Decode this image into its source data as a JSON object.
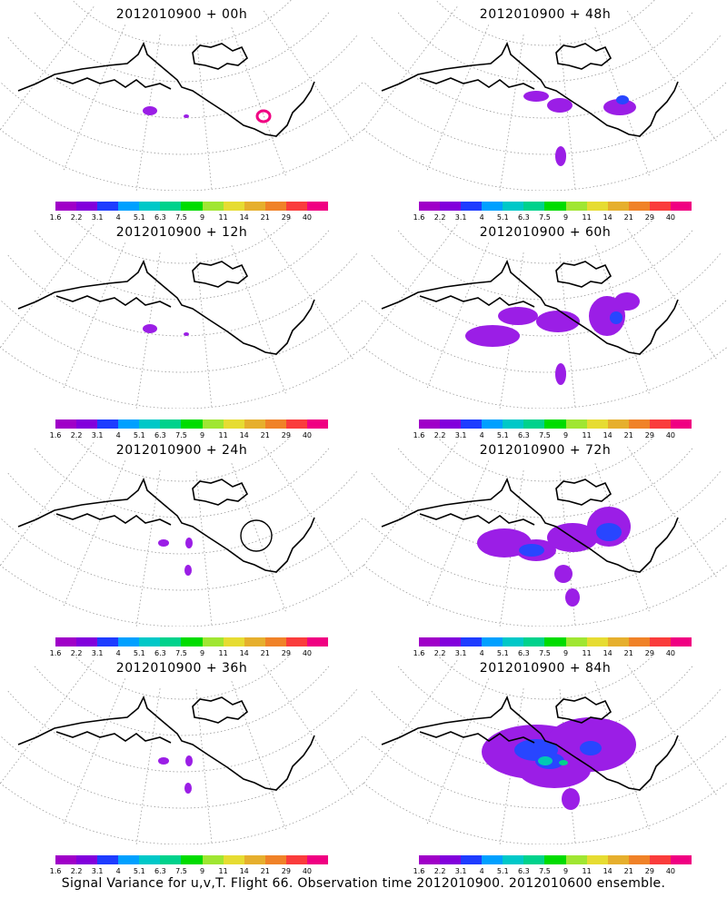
{
  "footer": "Signal Variance for u,v,T. Flight 66. Observation time 2012010900. 2012010600 ensemble.",
  "colorbar": {
    "colors": [
      "#a000c8",
      "#8200dc",
      "#1e3cff",
      "#00a0ff",
      "#00c8c8",
      "#00d28c",
      "#00dc00",
      "#a0e632",
      "#e6dc32",
      "#e6af2d",
      "#f08228",
      "#fa3c3c",
      "#f00082"
    ],
    "labels": [
      "1.6",
      "2.2",
      "3.1",
      "4",
      "5.1",
      "6.3",
      "7.5",
      "9",
      "11",
      "14",
      "21",
      "29",
      "40"
    ]
  },
  "panels": [
    {
      "title": "2012010900 + 00h",
      "level": 0
    },
    {
      "title": "2012010900 + 48h",
      "level": 2
    },
    {
      "title": "2012010900 + 12h",
      "level": 0
    },
    {
      "title": "2012010900 + 60h",
      "level": 3
    },
    {
      "title": "2012010900 + 24h",
      "level": 1
    },
    {
      "title": "2012010900 + 72h",
      "level": 4
    },
    {
      "title": "2012010900 + 36h",
      "level": 1
    },
    {
      "title": "2012010900 + 84h",
      "level": 5
    }
  ]
}
